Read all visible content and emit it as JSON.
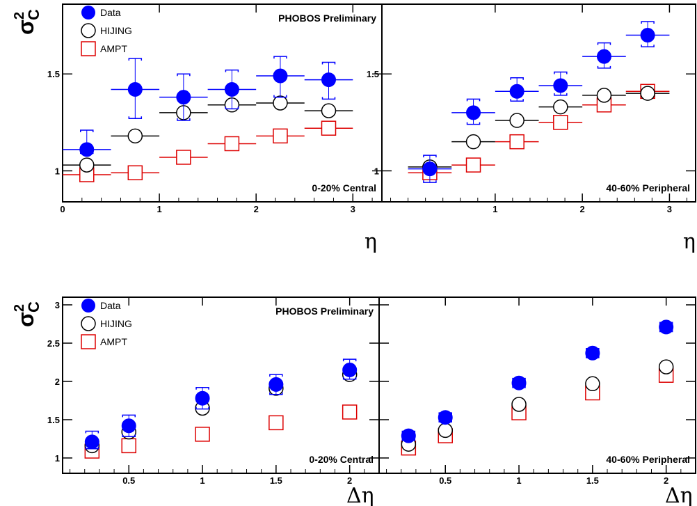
{
  "figure": {
    "top_ylabel": "σ²_C",
    "bottom_ylabel": "σ²_C",
    "top_xlabel": "η",
    "bottom_xlabel": "Δη",
    "colors": {
      "data": "#0000ff",
      "hijing": "#000000",
      "ampt": "#dd0000"
    }
  },
  "chart_data": [
    {
      "type": "scatter",
      "panel": "top-left",
      "annotation_top": "PHOBOS Preliminary",
      "annotation_bottom": "0-20% Central",
      "legend": [
        "Data",
        "HIJING",
        "AMPT"
      ],
      "legend_position": "top-left",
      "xlim": [
        0,
        3.3
      ],
      "ylim": [
        0.84,
        1.86
      ],
      "xticks": [
        0,
        1,
        2,
        3
      ],
      "yticks": [
        1,
        1.5
      ],
      "xerr": 0.25,
      "series": [
        {
          "name": "Data",
          "x": [
            0.25,
            0.75,
            1.25,
            1.75,
            2.25,
            2.75
          ],
          "y": [
            1.11,
            1.42,
            1.38,
            1.42,
            1.49,
            1.47
          ],
          "syst_lo": [
            1.09,
            1.27,
            1.26,
            1.32,
            1.38,
            1.37
          ],
          "syst_hi": [
            1.21,
            1.58,
            1.5,
            1.52,
            1.59,
            1.56
          ]
        },
        {
          "name": "HIJING",
          "x": [
            0.25,
            0.75,
            1.25,
            1.75,
            2.25,
            2.75
          ],
          "y": [
            1.03,
            1.18,
            1.3,
            1.34,
            1.35,
            1.31
          ]
        },
        {
          "name": "AMPT",
          "x": [
            0.25,
            0.75,
            1.25,
            1.75,
            2.25,
            2.75
          ],
          "y": [
            0.98,
            0.99,
            1.07,
            1.14,
            1.18,
            1.22
          ]
        }
      ]
    },
    {
      "type": "scatter",
      "panel": "top-right",
      "annotation_top": "",
      "annotation_bottom": "40-60% Peripheral",
      "legend": [],
      "xlim": [
        -0.3,
        3.3
      ],
      "ylim": [
        0.84,
        1.86
      ],
      "xticks": [
        1,
        2,
        3
      ],
      "yticks": [
        1,
        1.5
      ],
      "xerr": 0.25,
      "series": [
        {
          "name": "Data",
          "x": [
            0.25,
            0.75,
            1.25,
            1.75,
            2.25,
            2.75
          ],
          "y": [
            1.01,
            1.3,
            1.41,
            1.44,
            1.59,
            1.7
          ],
          "syst_lo": [
            0.94,
            1.24,
            1.36,
            1.39,
            1.53,
            1.64
          ],
          "syst_hi": [
            1.08,
            1.37,
            1.48,
            1.51,
            1.66,
            1.77
          ]
        },
        {
          "name": "HIJING",
          "x": [
            0.25,
            0.75,
            1.25,
            1.75,
            2.25,
            2.75
          ],
          "y": [
            1.02,
            1.15,
            1.26,
            1.33,
            1.39,
            1.4
          ]
        },
        {
          "name": "AMPT",
          "x": [
            0.25,
            0.75,
            1.25,
            1.75,
            2.25,
            2.75
          ],
          "y": [
            0.99,
            1.03,
            1.15,
            1.25,
            1.34,
            1.41
          ]
        }
      ]
    },
    {
      "type": "scatter",
      "panel": "bottom-left",
      "annotation_top": "PHOBOS Preliminary",
      "annotation_bottom": "0-20% Central",
      "legend": [
        "Data",
        "HIJING",
        "AMPT"
      ],
      "legend_position": "top-left",
      "xlim": [
        0.05,
        2.2
      ],
      "ylim": [
        0.8,
        3.1
      ],
      "xticks": [
        0.5,
        1,
        1.5,
        2
      ],
      "yticks": [
        1,
        1.5,
        2,
        2.5,
        3
      ],
      "series": [
        {
          "name": "Data",
          "x": [
            0.25,
            0.5,
            1.0,
            1.5,
            2.0
          ],
          "y": [
            1.21,
            1.42,
            1.78,
            1.96,
            2.15
          ],
          "syst_lo": [
            1.12,
            1.28,
            1.64,
            1.83,
            2.03
          ],
          "syst_hi": [
            1.35,
            1.56,
            1.92,
            2.09,
            2.29
          ]
        },
        {
          "name": "HIJING",
          "x": [
            0.25,
            0.5,
            1.0,
            1.5,
            2.0
          ],
          "y": [
            1.16,
            1.34,
            1.65,
            1.91,
            2.09
          ]
        },
        {
          "name": "AMPT",
          "x": [
            0.25,
            0.5,
            1.0,
            1.5,
            2.0
          ],
          "y": [
            1.09,
            1.16,
            1.31,
            1.46,
            1.6
          ]
        }
      ]
    },
    {
      "type": "scatter",
      "panel": "bottom-right",
      "annotation_top": "",
      "annotation_bottom": "40-60% Peripheral",
      "legend": [],
      "xlim": [
        0.05,
        2.2
      ],
      "ylim": [
        0.8,
        3.1
      ],
      "xticks": [
        0.5,
        1,
        1.5,
        2
      ],
      "yticks": [],
      "series": [
        {
          "name": "Data",
          "x": [
            0.25,
            0.5,
            1.0,
            1.5,
            2.0
          ],
          "y": [
            1.29,
            1.53,
            1.98,
            2.37,
            2.71
          ],
          "syst_lo": [
            1.23,
            1.47,
            1.92,
            2.31,
            2.65
          ],
          "syst_hi": [
            1.35,
            1.59,
            2.04,
            2.43,
            2.77
          ]
        },
        {
          "name": "HIJING",
          "x": [
            0.25,
            0.5,
            1.0,
            1.5,
            2.0
          ],
          "y": [
            1.18,
            1.36,
            1.7,
            1.97,
            2.19
          ]
        },
        {
          "name": "AMPT",
          "x": [
            0.25,
            0.5,
            1.0,
            1.5,
            2.0
          ],
          "y": [
            1.13,
            1.29,
            1.59,
            1.85,
            2.08
          ]
        }
      ]
    }
  ]
}
